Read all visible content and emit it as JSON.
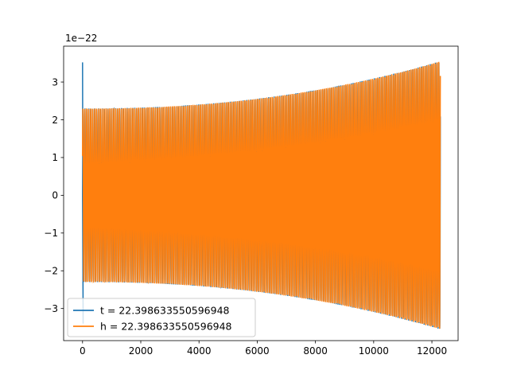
{
  "chart_data": {
    "type": "line",
    "title": "",
    "xlabel": "",
    "ylabel": "",
    "xlim": [
      -650,
      12900
    ],
    "ylim": [
      -3.85,
      3.95
    ],
    "y_offset_label": "1e−22",
    "x_ticks": [
      0,
      2000,
      4000,
      6000,
      8000,
      10000,
      12000
    ],
    "x_tick_labels": [
      "0",
      "2000",
      "4000",
      "6000",
      "8000",
      "10000",
      "12000"
    ],
    "y_ticks": [
      -3,
      -2,
      -1,
      0,
      1,
      2,
      3
    ],
    "y_tick_labels": [
      "−3",
      "−2",
      "−1",
      "0",
      "1",
      "2",
      "3"
    ],
    "grid": false,
    "legend_position": "lower-left",
    "series": [
      {
        "name": "t = 22.398633550596948",
        "color": "#1f77b4",
        "x_start": 0,
        "x_end": 12290,
        "amplitude_start": 2.3,
        "amplitude_end": 3.55,
        "initial_spike": [
          0,
          3.52,
          -3.4
        ],
        "cycles": 185
      },
      {
        "name": "h = 22.398633550596948",
        "color": "#ff7f0e",
        "x_start": 0,
        "x_end": 12290,
        "amplitude_start": 2.3,
        "amplitude_end": 3.55,
        "cycles": 185
      }
    ]
  }
}
